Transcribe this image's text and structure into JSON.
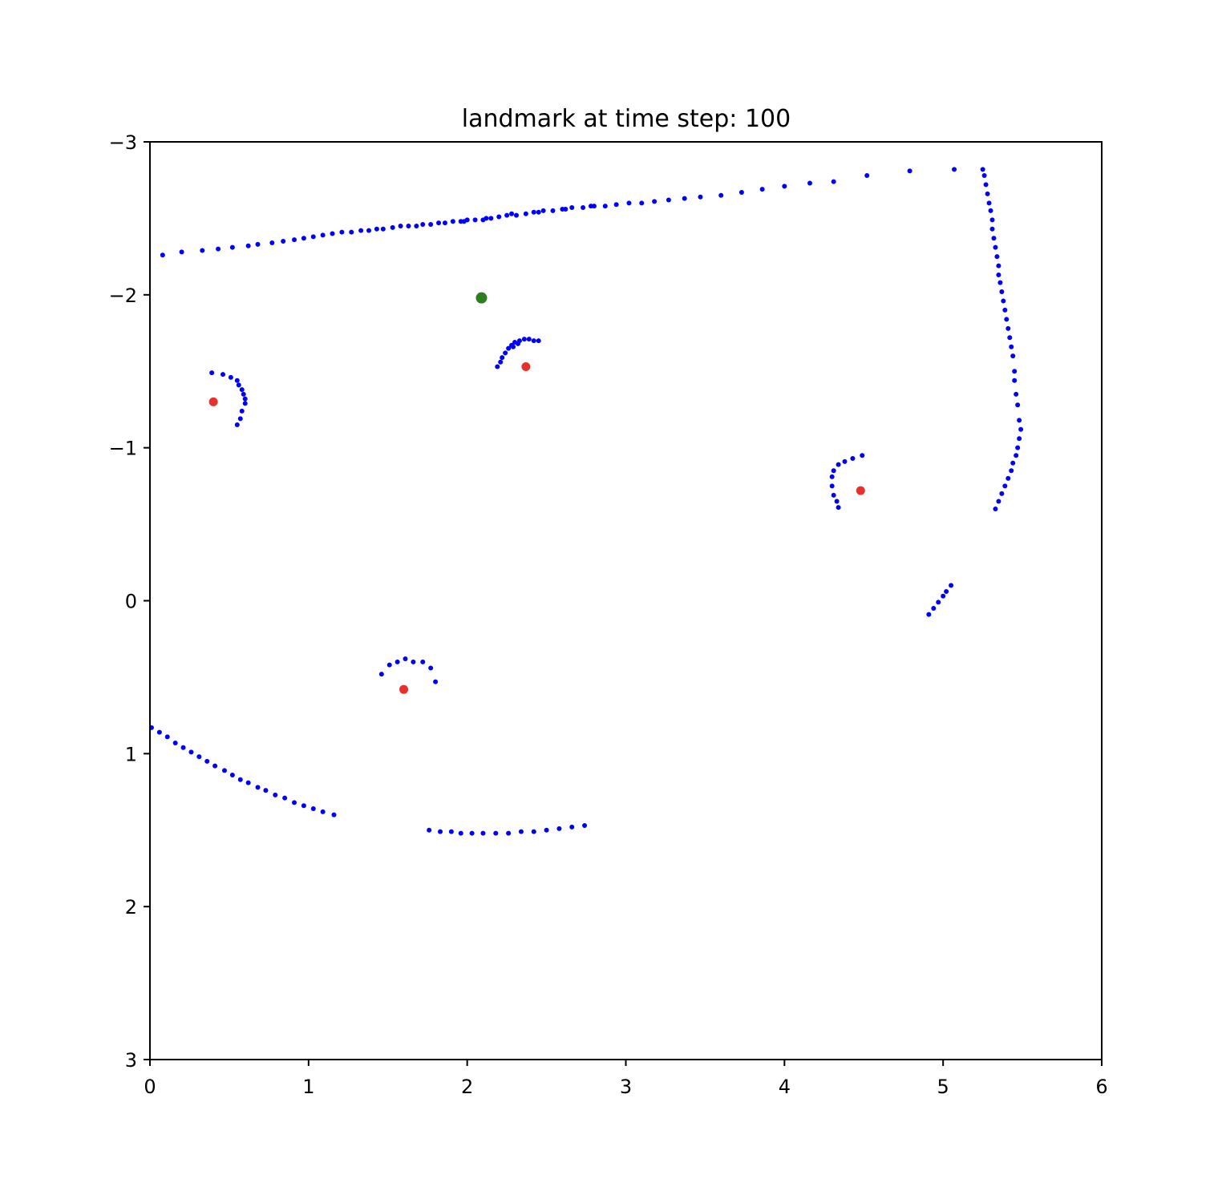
{
  "chart_data": {
    "type": "scatter",
    "title": "landmark at time step: 100",
    "xlabel": "",
    "ylabel": "",
    "xlim": [
      0,
      6
    ],
    "ylim": [
      -3,
      3
    ],
    "y_axis_inverted": true,
    "grid": false,
    "legend": "none",
    "xticks": [
      0,
      1,
      2,
      3,
      4,
      5,
      6
    ],
    "yticks": [
      -3,
      -2,
      -1,
      0,
      1,
      2,
      3
    ],
    "ytick_labels": [
      "−3",
      "−2",
      "−1",
      "0",
      "1",
      "2",
      "3"
    ],
    "colors": {
      "scan": "#0000ff",
      "landmark": "#e8302a",
      "robot": "#2e7d1f"
    },
    "series": [
      {
        "role": "scan",
        "color": "#0000ff",
        "points": [
          [
            0.08,
            -2.26
          ],
          [
            0.2,
            -2.28
          ],
          [
            0.33,
            -2.29
          ],
          [
            0.43,
            -2.3
          ],
          [
            0.52,
            -2.31
          ],
          [
            0.62,
            -2.32
          ],
          [
            0.68,
            -2.33
          ],
          [
            0.77,
            -2.34
          ],
          [
            0.84,
            -2.35
          ],
          [
            0.91,
            -2.36
          ],
          [
            0.97,
            -2.37
          ],
          [
            1.03,
            -2.38
          ],
          [
            1.09,
            -2.39
          ],
          [
            1.15,
            -2.4
          ],
          [
            1.21,
            -2.41
          ],
          [
            1.27,
            -2.41
          ],
          [
            1.33,
            -2.42
          ],
          [
            1.38,
            -2.42
          ],
          [
            1.43,
            -2.43
          ],
          [
            1.47,
            -2.43
          ],
          [
            1.53,
            -2.44
          ],
          [
            1.58,
            -2.45
          ],
          [
            1.63,
            -2.45
          ],
          [
            1.68,
            -2.45
          ],
          [
            1.72,
            -2.46
          ],
          [
            1.77,
            -2.46
          ],
          [
            1.82,
            -2.47
          ],
          [
            1.86,
            -2.47
          ],
          [
            1.91,
            -2.48
          ],
          [
            1.96,
            -2.48
          ],
          [
            2.0,
            -2.49
          ],
          [
            2.05,
            -2.49
          ],
          [
            2.1,
            -2.49
          ],
          [
            2.15,
            -2.5
          ],
          [
            2.2,
            -2.51
          ],
          [
            2.25,
            -2.52
          ],
          [
            2.31,
            -2.52
          ],
          [
            2.37,
            -2.53
          ],
          [
            2.42,
            -2.54
          ],
          [
            2.48,
            -2.55
          ],
          [
            2.54,
            -2.55
          ],
          [
            2.6,
            -2.56
          ],
          [
            2.66,
            -2.57
          ],
          [
            2.73,
            -2.57
          ],
          [
            2.8,
            -2.58
          ],
          [
            2.87,
            -2.58
          ],
          [
            2.94,
            -2.59
          ],
          [
            3.02,
            -2.6
          ],
          [
            3.1,
            -2.6
          ],
          [
            3.18,
            -2.61
          ],
          [
            3.27,
            -2.62
          ],
          [
            3.37,
            -2.63
          ],
          [
            3.47,
            -2.64
          ],
          [
            3.6,
            -2.65
          ],
          [
            3.73,
            -2.67
          ],
          [
            3.86,
            -2.69
          ],
          [
            4.0,
            -2.71
          ],
          [
            4.16,
            -2.73
          ],
          [
            4.31,
            -2.74
          ],
          [
            4.52,
            -2.78
          ],
          [
            4.79,
            -2.81
          ],
          [
            5.07,
            -2.82
          ],
          [
            1.98,
            -2.48
          ],
          [
            2.12,
            -2.5
          ],
          [
            2.28,
            -2.53
          ],
          [
            2.45,
            -2.54
          ],
          [
            2.62,
            -2.56
          ],
          [
            2.78,
            -2.58
          ],
          [
            5.25,
            -2.82
          ],
          [
            5.26,
            -2.78
          ],
          [
            5.27,
            -2.72
          ],
          [
            5.28,
            -2.66
          ],
          [
            5.29,
            -2.6
          ],
          [
            5.3,
            -2.55
          ],
          [
            5.31,
            -2.49
          ],
          [
            5.31,
            -2.43
          ],
          [
            5.32,
            -2.37
          ],
          [
            5.33,
            -2.31
          ],
          [
            5.34,
            -2.25
          ],
          [
            5.35,
            -2.19
          ],
          [
            5.35,
            -2.13
          ],
          [
            5.36,
            -2.08
          ],
          [
            5.37,
            -2.02
          ],
          [
            5.38,
            -1.96
          ],
          [
            5.39,
            -1.9
          ],
          [
            5.4,
            -1.84
          ],
          [
            5.41,
            -1.78
          ],
          [
            5.42,
            -1.72
          ],
          [
            5.43,
            -1.66
          ],
          [
            5.44,
            -1.6
          ],
          [
            5.45,
            -1.5
          ],
          [
            5.45,
            -1.44
          ],
          [
            5.46,
            -1.35
          ],
          [
            5.47,
            -1.28
          ],
          [
            5.48,
            -1.18
          ],
          [
            5.49,
            -1.12
          ],
          [
            5.48,
            -1.06
          ],
          [
            5.47,
            -1.0
          ],
          [
            5.46,
            -0.95
          ],
          [
            5.44,
            -0.9
          ],
          [
            5.43,
            -0.85
          ],
          [
            5.41,
            -0.8
          ],
          [
            5.39,
            -0.75
          ],
          [
            5.37,
            -0.7
          ],
          [
            5.35,
            -0.65
          ],
          [
            5.33,
            -0.6
          ],
          [
            4.91,
            0.09
          ],
          [
            4.94,
            0.05
          ],
          [
            4.97,
            0.01
          ],
          [
            5.0,
            -0.03
          ],
          [
            5.02,
            -0.06
          ],
          [
            5.05,
            -0.1
          ],
          [
            0.39,
            -1.49
          ],
          [
            0.46,
            -1.48
          ],
          [
            0.51,
            -1.46
          ],
          [
            0.55,
            -1.44
          ],
          [
            0.56,
            -1.41
          ],
          [
            0.58,
            -1.38
          ],
          [
            0.59,
            -1.35
          ],
          [
            0.6,
            -1.32
          ],
          [
            0.6,
            -1.29
          ],
          [
            0.58,
            -1.24
          ],
          [
            0.57,
            -1.19
          ],
          [
            0.55,
            -1.15
          ],
          [
            2.19,
            -1.53
          ],
          [
            2.21,
            -1.56
          ],
          [
            2.22,
            -1.59
          ],
          [
            2.24,
            -1.62
          ],
          [
            2.26,
            -1.65
          ],
          [
            2.28,
            -1.67
          ],
          [
            2.3,
            -1.69
          ],
          [
            2.33,
            -1.7
          ],
          [
            2.36,
            -1.71
          ],
          [
            2.39,
            -1.71
          ],
          [
            2.42,
            -1.7
          ],
          [
            2.45,
            -1.7
          ],
          [
            2.29,
            -1.66
          ],
          [
            2.32,
            -1.68
          ],
          [
            4.49,
            -0.95
          ],
          [
            4.43,
            -0.93
          ],
          [
            4.38,
            -0.91
          ],
          [
            4.34,
            -0.89
          ],
          [
            4.31,
            -0.85
          ],
          [
            4.3,
            -0.81
          ],
          [
            4.3,
            -0.75
          ],
          [
            4.31,
            -0.69
          ],
          [
            4.33,
            -0.65
          ],
          [
            4.34,
            -0.61
          ],
          [
            1.46,
            0.48
          ],
          [
            1.51,
            0.42
          ],
          [
            1.56,
            0.4
          ],
          [
            1.61,
            0.38
          ],
          [
            1.66,
            0.4
          ],
          [
            1.72,
            0.4
          ],
          [
            1.77,
            0.44
          ],
          [
            1.8,
            0.53
          ],
          [
            0.01,
            0.83
          ],
          [
            0.06,
            0.86
          ],
          [
            0.11,
            0.89
          ],
          [
            0.16,
            0.93
          ],
          [
            0.21,
            0.96
          ],
          [
            0.26,
            0.99
          ],
          [
            0.31,
            1.02
          ],
          [
            0.36,
            1.05
          ],
          [
            0.41,
            1.08
          ],
          [
            0.47,
            1.11
          ],
          [
            0.52,
            1.14
          ],
          [
            0.57,
            1.17
          ],
          [
            0.62,
            1.19
          ],
          [
            0.68,
            1.22
          ],
          [
            0.73,
            1.24
          ],
          [
            0.79,
            1.27
          ],
          [
            0.85,
            1.29
          ],
          [
            0.91,
            1.32
          ],
          [
            0.97,
            1.34
          ],
          [
            1.03,
            1.36
          ],
          [
            1.09,
            1.38
          ],
          [
            1.16,
            1.4
          ],
          [
            1.76,
            1.5
          ],
          [
            1.83,
            1.51
          ],
          [
            1.9,
            1.51
          ],
          [
            1.96,
            1.52
          ],
          [
            2.03,
            1.52
          ],
          [
            2.1,
            1.52
          ],
          [
            2.18,
            1.52
          ],
          [
            2.26,
            1.52
          ],
          [
            2.34,
            1.51
          ],
          [
            2.42,
            1.51
          ],
          [
            2.5,
            1.5
          ],
          [
            2.58,
            1.49
          ],
          [
            2.66,
            1.48
          ],
          [
            2.74,
            1.47
          ]
        ]
      },
      {
        "role": "landmark",
        "color": "#e8302a",
        "points": [
          [
            0.4,
            -1.3
          ],
          [
            2.37,
            -1.53
          ],
          [
            4.48,
            -0.72
          ],
          [
            1.6,
            0.58
          ]
        ]
      },
      {
        "role": "robot",
        "color": "#2e7d1f",
        "points": [
          [
            2.09,
            -1.98
          ]
        ]
      }
    ]
  }
}
